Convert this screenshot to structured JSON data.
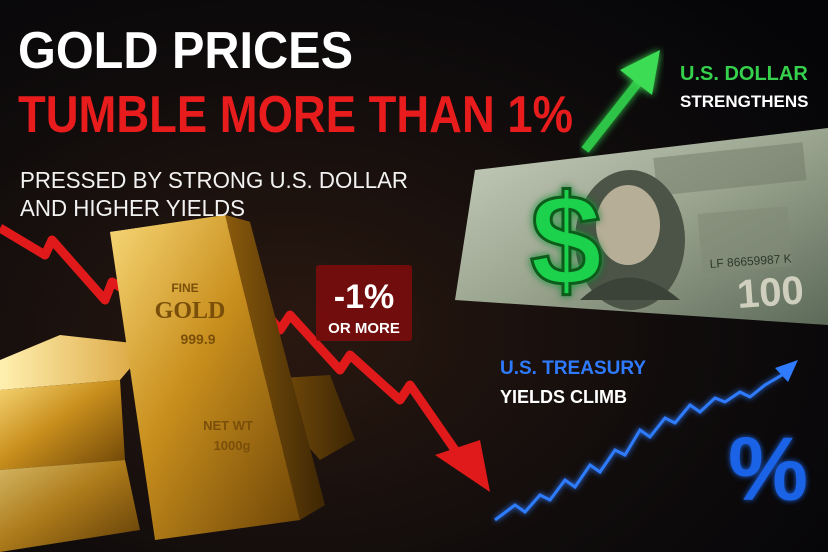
{
  "headline": {
    "line1": "GOLD PRICES",
    "line2": "TUMBLE MORE THAN 1%"
  },
  "subhead": {
    "line1": "PRESSED BY STRONG U.S. DOLLAR",
    "line2": "AND HIGHER YIELDS"
  },
  "dollar": {
    "label": "U.S. DOLLAR",
    "caption": "STRENGTHENS",
    "symbol": "$",
    "serial": "LF 86659987 K",
    "denomination": "100"
  },
  "drop_badge": {
    "value": "-1%",
    "caption": "OR MORE"
  },
  "treasury": {
    "label": "U.S. TREASURY",
    "caption": "YIELDS CLIMB",
    "symbol": "%"
  },
  "gold_bar": {
    "line1": "FINE",
    "line2": "GOLD",
    "purity": "999.9",
    "weight_label": "NET WT",
    "weight": "1000g"
  }
}
